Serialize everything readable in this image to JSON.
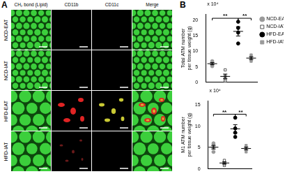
{
  "panel_a": {
    "label": "A",
    "columns": [
      "CH₂ bond (Lipid)",
      "CD11b",
      "CD11c",
      "Merge"
    ],
    "rows": [
      "NCD-EAT",
      "NCD-IAT",
      "HFD-EAT",
      "HFD-IAT"
    ]
  },
  "panel_b": {
    "label": "B"
  },
  "chart_data": [
    {
      "type": "scatter",
      "y_label": [
        "Total ATM number",
        "per tissue weight (g)"
      ],
      "y_multiplier": "x 10⁴",
      "categories": [
        null,
        null,
        null,
        null
      ],
      "series": [
        {
          "name": "NCD-EAT",
          "color": "#9a9a9a",
          "marker": "circle",
          "values": [
            5.2,
            5.8,
            6.3,
            6.8
          ],
          "mean": 6.0,
          "error": 0.35
        },
        {
          "name": "NCD-IAT",
          "color": "#ffffff",
          "marker": "square",
          "values": [
            0.5,
            1.2,
            2.0,
            4.0
          ],
          "mean": 1.9,
          "error": 0.75
        },
        {
          "name": "HFD-EAT",
          "color": "#000000",
          "marker": "circle",
          "values": [
            12.5,
            16.0,
            17.5,
            19.5
          ],
          "mean": 16.4,
          "error": 1.5
        },
        {
          "name": "HFD-IAT",
          "color": "#9a9a9a",
          "marker": "square",
          "values": [
            6.8,
            7.4,
            8.0,
            8.8
          ],
          "mean": 7.8,
          "error": 0.45
        }
      ],
      "comparisons": [
        {
          "groups": [
            "NCD-EAT",
            "HFD-EAT"
          ],
          "label": "**"
        },
        {
          "groups": [
            "HFD-EAT",
            "HFD-IAT"
          ],
          "label": "**"
        }
      ],
      "ylim": [
        0,
        22
      ],
      "yticks": [
        0,
        5,
        10,
        15,
        20
      ],
      "grid": false,
      "legend": "upper right",
      "tick_labels": "y"
    },
    {
      "type": "scatter",
      "y_label": [
        "M1 ATM number",
        "per tissue weight (g)"
      ],
      "y_multiplier": "x 10⁴",
      "categories": [
        null,
        null,
        null,
        null
      ],
      "series": [
        {
          "name": "NCD-EAT",
          "color": "#9a9a9a",
          "marker": "circle",
          "values": [
            4.0,
            5.0,
            5.5,
            6.0
          ],
          "mean": 5.1,
          "error": 0.43
        },
        {
          "name": "NCD-IAT",
          "color": "#ffffff",
          "marker": "square",
          "values": [
            0.8,
            1.2,
            1.5,
            2.0
          ],
          "mean": 1.4,
          "error": 0.25
        },
        {
          "name": "HFD-EAT",
          "color": "#000000",
          "marker": "circle",
          "values": [
            7.5,
            8.5,
            9.5,
            12.0
          ],
          "mean": 9.4,
          "error": 0.97
        },
        {
          "name": "HFD-IAT",
          "color": "#9a9a9a",
          "marker": "square",
          "values": [
            4.0,
            4.5,
            5.0,
            5.5
          ],
          "mean": 4.8,
          "error": 0.32
        }
      ],
      "comparisons": [
        {
          "groups": [
            "NCD-EAT",
            "HFD-EAT"
          ],
          "label": "**"
        },
        {
          "groups": [
            "HFD-EAT",
            "HFD-IAT"
          ],
          "label": "**"
        }
      ],
      "ylim": [
        0,
        16
      ],
      "yticks": [
        0,
        5,
        10,
        15
      ],
      "grid": false,
      "tick_labels": "y"
    }
  ]
}
